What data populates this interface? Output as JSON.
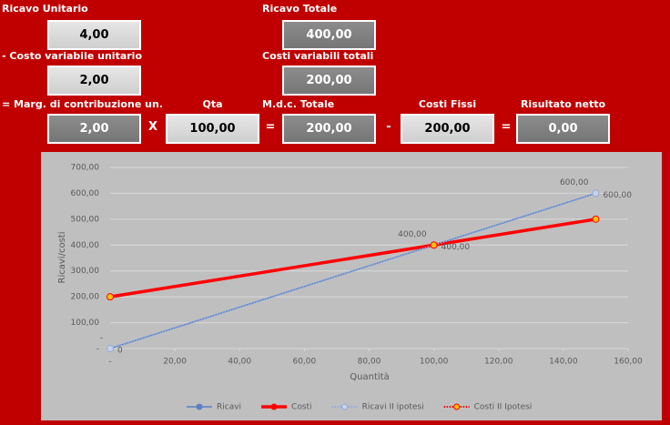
{
  "panel": {
    "fields": [
      {
        "label": "Ricavo Unitario",
        "value": "4,00"
      },
      {
        "label": "Ricavo Totale",
        "value": "400,00"
      },
      {
        "label": "- Costo variabile unitario",
        "value": "2,00"
      },
      {
        "label": "Costi variabili totali",
        "value": "200,00"
      },
      {
        "label": "= Marg. di contribuzione un.",
        "value": "2,00"
      },
      {
        "label": "Qta",
        "value": "100,00"
      },
      {
        "label": "M.d.c. Totale",
        "value": "200,00"
      },
      {
        "label": "Costi Fissi",
        "value": "200,00"
      },
      {
        "label": "Risultato netto",
        "value": "0,00"
      }
    ],
    "operators": [
      "X",
      "=",
      "-",
      "="
    ]
  },
  "chart_data": {
    "type": "line",
    "x_label": "Quantità",
    "y_label": "Ricavi/costi",
    "x": [
      0,
      100,
      150
    ],
    "series": [
      {
        "name": "Ricavi",
        "color": "#5b7fc7",
        "dashed": false,
        "values": [
          0,
          400,
          600
        ],
        "value_labels": [
          "-",
          "400,00",
          "600,00"
        ]
      },
      {
        "name": "Costi",
        "color": "#ff0000",
        "dashed": false,
        "values": [
          200,
          400,
          500
        ]
      },
      {
        "name": "Ricavi II ipotesi",
        "color": "#8faadc",
        "dashed": true,
        "marker_color": "#c9d3e6",
        "values": [
          0,
          400,
          600
        ],
        "value_labels": [
          "0",
          "400,00",
          "600,00"
        ]
      },
      {
        "name": "Costi II Ipotesi",
        "color": "#ff0000",
        "dashed": true,
        "marker_color": "#ffc000",
        "values": [
          200,
          400,
          500
        ]
      }
    ],
    "xlim": [
      0,
      160
    ],
    "xticks": [
      {
        "value": 0,
        "label": "-"
      },
      {
        "value": 20,
        "label": "20,00"
      },
      {
        "value": 40,
        "label": "40,00"
      },
      {
        "value": 60,
        "label": "60,00"
      },
      {
        "value": 80,
        "label": "80,00"
      },
      {
        "value": 100,
        "label": "100,00"
      },
      {
        "value": 120,
        "label": "120,00"
      },
      {
        "value": 140,
        "label": "140,00"
      },
      {
        "value": 160,
        "label": "160,00"
      }
    ],
    "ylim": [
      0,
      700
    ],
    "yticks": [
      {
        "value": 0,
        "label": "-"
      },
      {
        "value": 100,
        "label": "100,00"
      },
      {
        "value": 200,
        "label": "200,00"
      },
      {
        "value": 300,
        "label": "300,00"
      },
      {
        "value": 400,
        "label": "400,00"
      },
      {
        "value": 500,
        "label": "500,00"
      },
      {
        "value": 600,
        "label": "600,00"
      },
      {
        "value": 700,
        "label": "700,00"
      }
    ],
    "grid": true,
    "legend": "bottom"
  }
}
